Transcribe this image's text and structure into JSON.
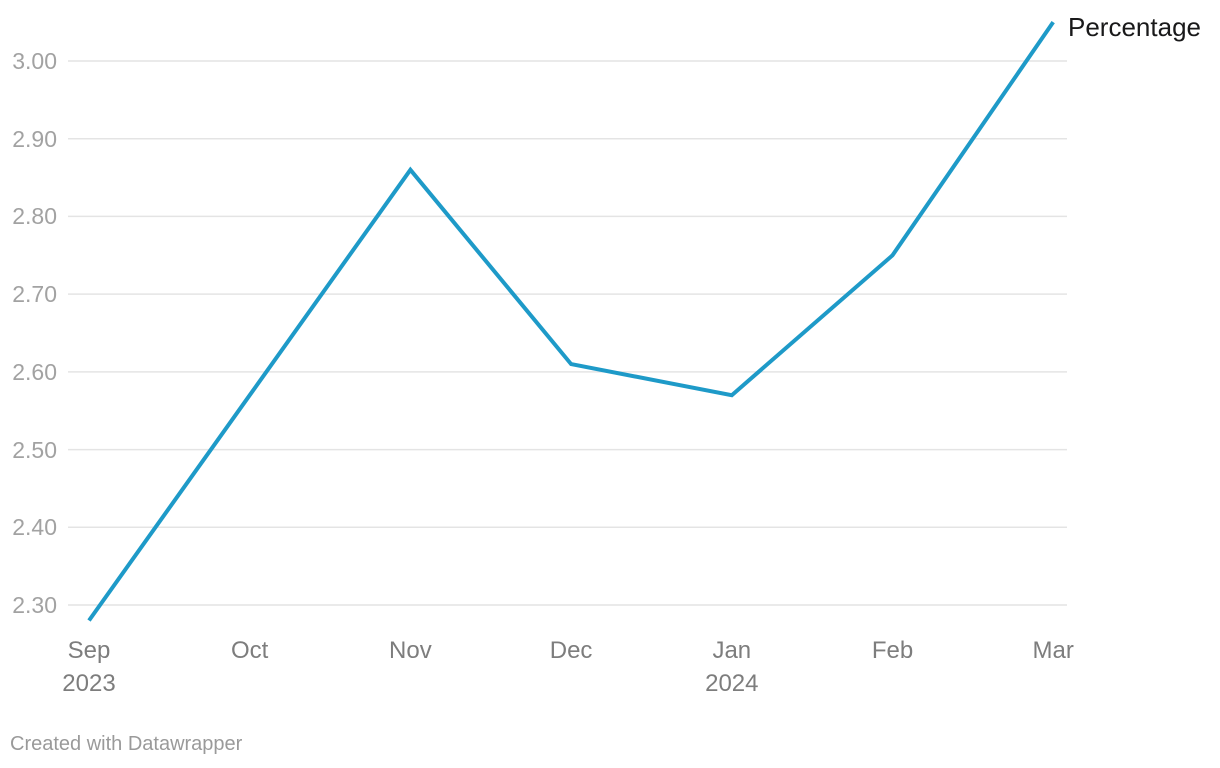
{
  "chart": {
    "legend_label": "Percentage",
    "attribution": "Created with Datawrapper"
  },
  "colors": {
    "line": "#1e9ac8",
    "gridline": "#e4e4e4",
    "ytick_text": "#a2a2a2",
    "xtick_text": "#7d7d7d",
    "legend_text": "#19191a",
    "attribution_text": "#9a9a9a",
    "background": "#ffffff"
  },
  "chart_data": {
    "type": "line",
    "title": "",
    "xlabel": "",
    "ylabel": "",
    "categories": [
      {
        "label": "Sep",
        "sublabel": "2023"
      },
      {
        "label": "Oct",
        "sublabel": ""
      },
      {
        "label": "Nov",
        "sublabel": ""
      },
      {
        "label": "Dec",
        "sublabel": ""
      },
      {
        "label": "Jan",
        "sublabel": "2024"
      },
      {
        "label": "Feb",
        "sublabel": ""
      },
      {
        "label": "Mar",
        "sublabel": ""
      }
    ],
    "series": [
      {
        "name": "Percentage",
        "values": [
          2.28,
          2.57,
          2.86,
          2.61,
          2.57,
          2.75,
          3.05
        ]
      }
    ],
    "yticks": [
      2.3,
      2.4,
      2.5,
      2.6,
      2.7,
      2.8,
      2.9,
      3.0
    ],
    "ylim": [
      2.3,
      3.0
    ],
    "grid": "horizontal",
    "legend_position": "top-right-inline"
  }
}
